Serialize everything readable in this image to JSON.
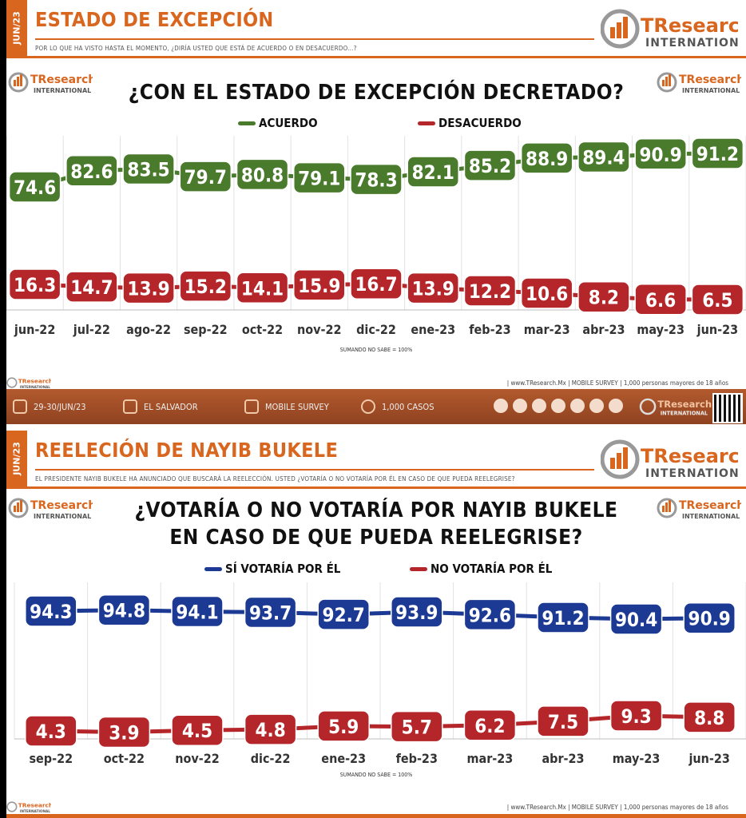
{
  "panel1": {
    "date_tag": "JUN/23",
    "header_title": "ESTADO DE EXCEPCIÓN",
    "question": "POR LO QUE HA VISTO HASTA EL MOMENTO, ¿DIRÍA USTED QUE ESTÁ DE ACUERDO O EN DESACUERDO...?",
    "logo_brand": "TResearch",
    "logo_sub": "INTERNATIONAL",
    "chart_title": "¿CON EL ESTADO DE EXCEPCIÓN DECRETADO?",
    "note": "SUMANDO NO SABE = 100%",
    "footer": "| www.TResearch.Mx | MOBILE SURVEY | 1,000 personas mayores de 18 años",
    "bottom_bar": {
      "date": "29-30/JUN/23",
      "place": "EL SALVADOR",
      "method": "MOBILE SURVEY",
      "cases": "1,000 CASOS"
    }
  },
  "panel2": {
    "date_tag": "JUN/23",
    "header_title": "REELECIÓN DE NAYIB BUKELE",
    "question": "EL PRESIDENTE NAYIB BUKELE HA ANUNCIADO QUE BUSCARÁ LA REELECCIÓN. USTED ¿VOTARÍA O NO VOTARÍA POR ÉL EN CASO DE QUE PUEDA REELEGRISE?",
    "logo_brand": "TResearch",
    "logo_sub": "INTERNATIONAL",
    "chart_title_line1": "¿VOTARÍA O NO VOTARÍA POR NAYIB BUKELE",
    "chart_title_line2": "EN CASO DE QUE PUEDA REELEGRISE?",
    "note": "SUMANDO NO SABE = 100%",
    "footer": "| www.TResearch.Mx | MOBILE SURVEY | 1,000 personas mayores de 18 años"
  },
  "colors": {
    "orange": "#d9661f",
    "green": "#4a7a2c",
    "red": "#b5262a",
    "blue": "#1c3a94"
  },
  "chart_data": [
    {
      "type": "line",
      "title": "¿CON EL ESTADO DE EXCEPCIÓN DECRETADO?",
      "categories": [
        "jun-22",
        "jul-22",
        "ago-22",
        "sep-22",
        "oct-22",
        "nov-22",
        "dic-22",
        "ene-23",
        "feb-23",
        "mar-23",
        "abr-23",
        "may-23",
        "jun-23"
      ],
      "series": [
        {
          "name": "ACUERDO",
          "color": "#4a7a2c",
          "values": [
            74.6,
            82.6,
            83.5,
            79.7,
            80.8,
            79.1,
            78.3,
            82.1,
            85.2,
            88.9,
            89.4,
            90.9,
            91.2
          ]
        },
        {
          "name": "DESACUERDO",
          "color": "#b5262a",
          "values": [
            16.3,
            14.7,
            13.9,
            15.2,
            14.1,
            15.9,
            16.7,
            13.9,
            12.2,
            10.6,
            8.2,
            6.6,
            6.5
          ]
        }
      ],
      "legend": "top-center",
      "grid": "vertical"
    },
    {
      "type": "line",
      "title": "¿VOTARÍA O NO VOTARÍA POR NAYIB BUKELE EN CASO DE QUE PUEDA REELEGRISE?",
      "categories": [
        "sep-22",
        "oct-22",
        "nov-22",
        "dic-22",
        "ene-23",
        "feb-23",
        "mar-23",
        "abr-23",
        "may-23",
        "jun-23"
      ],
      "series": [
        {
          "name": "SÍ VOTARÍA POR ÉL",
          "color": "#1c3a94",
          "values": [
            94.3,
            94.8,
            94.1,
            93.7,
            92.7,
            93.9,
            92.6,
            91.2,
            90.4,
            90.9
          ]
        },
        {
          "name": "NO VOTARÍA POR ÉL",
          "color": "#b5262a",
          "values": [
            4.3,
            3.9,
            4.5,
            4.8,
            5.9,
            5.7,
            6.2,
            7.5,
            9.3,
            8.8
          ]
        }
      ],
      "legend": "top-center",
      "grid": "vertical"
    }
  ]
}
